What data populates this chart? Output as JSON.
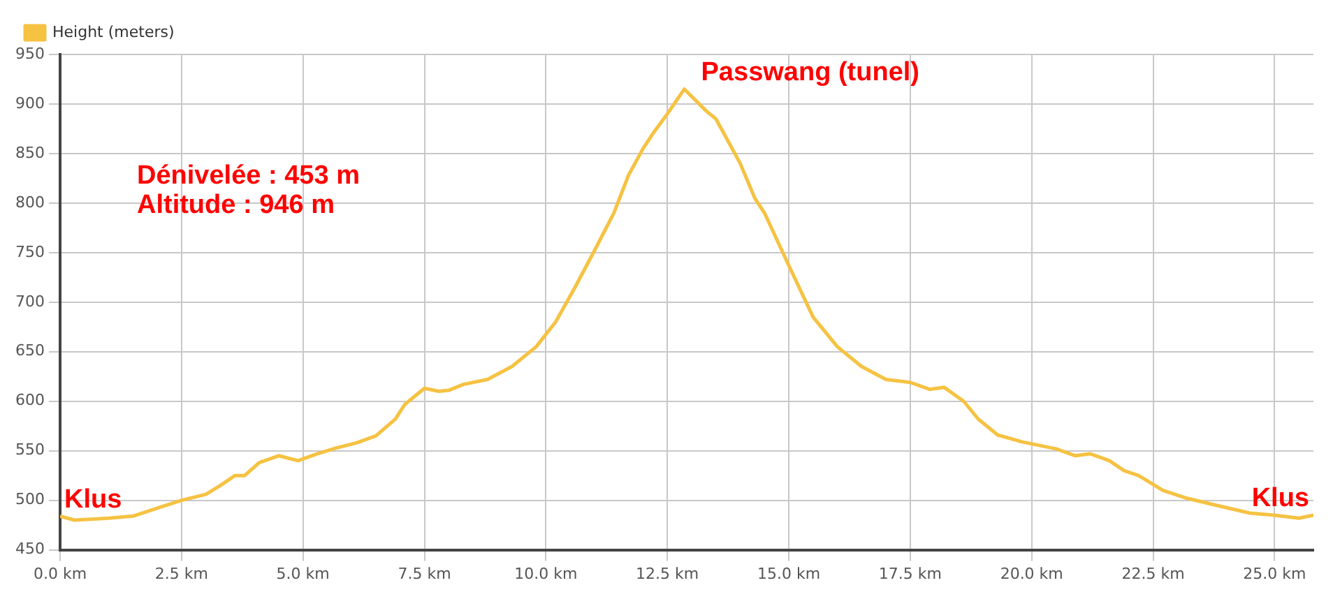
{
  "chart_data": {
    "type": "line",
    "legend": "top left",
    "grid": true,
    "marker": "none",
    "line_style": "solid",
    "x": [
      0,
      0.3,
      1,
      1.5,
      2,
      2.5,
      3,
      3.3,
      3.6,
      3.8,
      4.1,
      4.5,
      4.9,
      5.3,
      5.7,
      6.1,
      6.5,
      6.9,
      7.1,
      7.5,
      7.8,
      8.0,
      8.3,
      8.8,
      9.3,
      9.8,
      10.2,
      10.6,
      11.0,
      11.4,
      11.7,
      12.0,
      12.2,
      12.5,
      12.85,
      13.3,
      13.5,
      13.7,
      14.0,
      14.3,
      14.5,
      15.0,
      15.5,
      16.0,
      16.5,
      17.0,
      17.5,
      17.9,
      18.2,
      18.6,
      18.9,
      19.3,
      19.8,
      20.5,
      20.9,
      21.2,
      21.6,
      21.9,
      22.2,
      22.7,
      23.2,
      23.8,
      24.5,
      25.0,
      25.5,
      25.8
    ],
    "series": [
      {
        "name": "Height (meters)",
        "color": "#f5c242",
        "values": [
          484,
          480,
          482,
          484,
          492,
          500,
          506,
          515,
          525,
          525,
          538,
          545,
          540,
          547,
          553,
          558,
          565,
          582,
          597,
          613,
          610,
          611,
          617,
          622,
          635,
          655,
          680,
          715,
          752,
          790,
          828,
          855,
          870,
          890,
          915,
          893,
          885,
          867,
          840,
          805,
          790,
          737,
          685,
          655,
          635,
          622,
          619,
          612,
          614,
          600,
          582,
          566,
          559,
          552,
          545,
          547,
          540,
          530,
          525,
          510,
          502,
          495,
          487,
          485,
          482,
          485
        ]
      }
    ],
    "xlim": [
      0,
      25.8
    ],
    "xticks": [
      {
        "value": 0,
        "label": "0.0 km"
      },
      {
        "value": 2.5,
        "label": "2.5 km"
      },
      {
        "value": 5,
        "label": "5.0 km"
      },
      {
        "value": 7.5,
        "label": "7.5 km"
      },
      {
        "value": 10,
        "label": "10.0 km"
      },
      {
        "value": 12.5,
        "label": "12.5 km"
      },
      {
        "value": 15,
        "label": "15.0 km"
      },
      {
        "value": 17.5,
        "label": "17.5 km"
      },
      {
        "value": 20,
        "label": "20.0 km"
      },
      {
        "value": 22.5,
        "label": "22.5 km"
      },
      {
        "value": 25,
        "label": "25.0 km"
      }
    ],
    "ylim": [
      450,
      950
    ],
    "yticks": [
      450,
      500,
      550,
      600,
      650,
      700,
      750,
      800,
      850,
      900,
      950
    ],
    "annotations": [
      "Dénivelée : 453 m",
      "Altitude : 946 m",
      {
        "text": "Klus",
        "x": 0,
        "y": 484
      },
      {
        "text": "Passwang (tunel)",
        "x": 12.85,
        "y": 915
      },
      {
        "text": "Klus",
        "x": 25.8,
        "y": 485
      }
    ]
  }
}
